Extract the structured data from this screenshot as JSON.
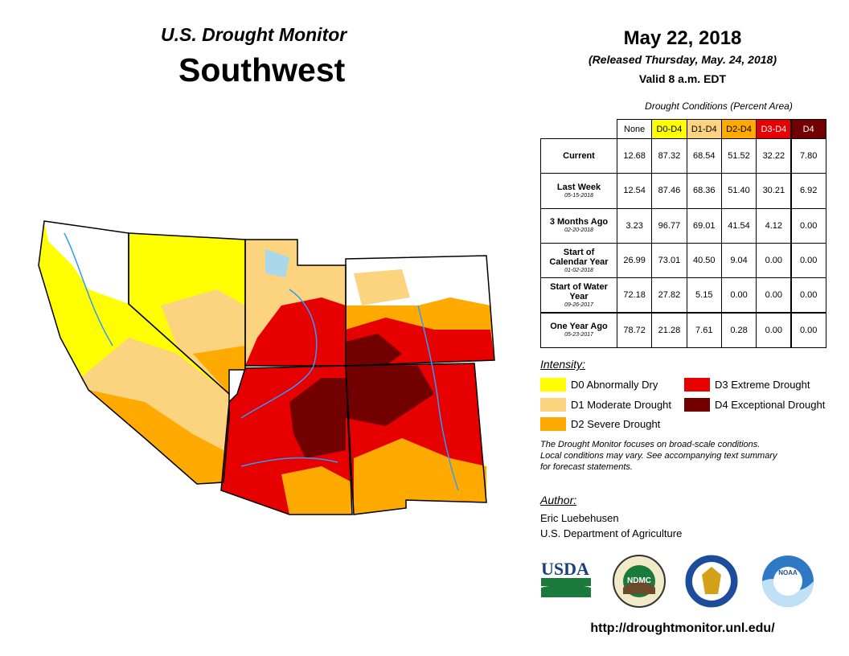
{
  "header": {
    "title": "U.S. Drought Monitor",
    "region": "Southwest"
  },
  "date": {
    "valid_date": "May 22, 2018",
    "released": "(Released Thursday, May. 24, 2018)",
    "valid_time": "Valid 8 a.m. EDT"
  },
  "table": {
    "caption": "Drought Conditions (Percent Area)",
    "columns": [
      {
        "label": "None",
        "color": "#ffffff",
        "text_color": "#000000"
      },
      {
        "label": "D0-D4",
        "color": "#ffff00",
        "text_color": "#000000"
      },
      {
        "label": "D1-D4",
        "color": "#fcd37f",
        "text_color": "#000000"
      },
      {
        "label": "D2-D4",
        "color": "#ffaa00",
        "text_color": "#000000"
      },
      {
        "label": "D3-D4",
        "color": "#e60000",
        "text_color": "#ffffff"
      },
      {
        "label": "D4",
        "color": "#730000",
        "text_color": "#ffffff"
      }
    ],
    "rows": [
      {
        "label": "Current",
        "values": [
          "12.68",
          "87.32",
          "68.54",
          "51.52",
          "32.22",
          "7.80"
        ]
      },
      {
        "label": "Last Week",
        "date": "05-15-2018",
        "values": [
          "12.54",
          "87.46",
          "68.36",
          "51.40",
          "30.21",
          "6.92"
        ]
      },
      {
        "label": "3 Months Ago",
        "date": "02-20-2018",
        "values": [
          "3.23",
          "96.77",
          "69.01",
          "41.54",
          "4.12",
          "0.00"
        ]
      },
      {
        "label": "Start of Calendar Year",
        "date": "01-02-2018",
        "values": [
          "26.99",
          "73.01",
          "40.50",
          "9.04",
          "0.00",
          "0.00"
        ]
      },
      {
        "label": "Start of Water Year",
        "date": "09-26-2017",
        "values": [
          "72.18",
          "27.82",
          "5.15",
          "0.00",
          "0.00",
          "0.00"
        ]
      },
      {
        "label": "One Year Ago",
        "date": "05-23-2017",
        "values": [
          "78.72",
          "21.28",
          "7.61",
          "0.28",
          "0.00",
          "0.00"
        ]
      }
    ]
  },
  "legend": {
    "title": "Intensity:",
    "items": [
      {
        "label": "D0 Abnormally Dry",
        "color": "#ffff00"
      },
      {
        "label": "D1 Moderate Drought",
        "color": "#fcd37f"
      },
      {
        "label": "D2 Severe Drought",
        "color": "#ffaa00"
      },
      {
        "label": "D3 Extreme Drought",
        "color": "#e60000"
      },
      {
        "label": "D4 Exceptional Drought",
        "color": "#730000"
      }
    ]
  },
  "note": [
    "The Drought Monitor focuses on broad-scale conditions.",
    "Local conditions may vary. See accompanying text summary",
    "for forecast statements."
  ],
  "author": {
    "title": "Author:",
    "name": "Eric Luebehusen",
    "agency": "U.S. Department of Agriculture"
  },
  "logos": [
    "USDA",
    "NDMC",
    "NOAA"
  ],
  "url": "http://droughtmonitor.unl.edu/"
}
